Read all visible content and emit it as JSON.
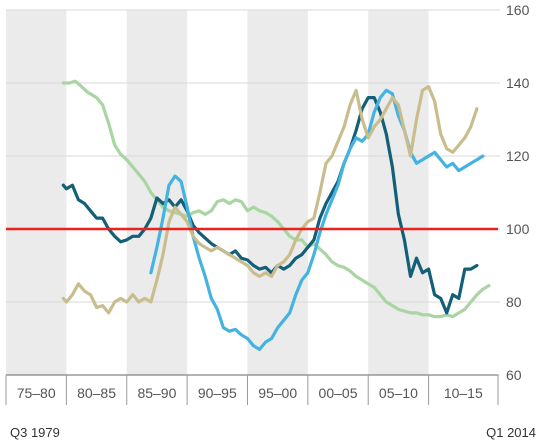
{
  "chart_data": {
    "type": "line",
    "y_range": [
      60,
      160
    ],
    "y_ticks": [
      60,
      80,
      100,
      120,
      140,
      160
    ],
    "x_range": [
      1975.0,
      2015.75
    ],
    "periods": [
      {
        "label": "75–80",
        "start": 1975,
        "end": 1980,
        "shaded": true
      },
      {
        "label": "80–85",
        "start": 1980,
        "end": 1985,
        "shaded": false
      },
      {
        "label": "85–90",
        "start": 1985,
        "end": 1990,
        "shaded": true
      },
      {
        "label": "90–95",
        "start": 1990,
        "end": 1995,
        "shaded": false
      },
      {
        "label": "95–00",
        "start": 1995,
        "end": 2000,
        "shaded": true
      },
      {
        "label": "00–05",
        "start": 2000,
        "end": 2005,
        "shaded": false
      },
      {
        "label": "05–10",
        "start": 2005,
        "end": 2010,
        "shaded": true
      },
      {
        "label": "10–15",
        "start": 2010,
        "end": 2015.75,
        "shaded": false
      }
    ],
    "reference_line": {
      "y": 100,
      "color": "#e8221c"
    },
    "grid": "horizontal",
    "series": [
      {
        "color": "#a8d5a2",
        "points": [
          [
            1979.75,
            140
          ],
          [
            1980.25,
            140
          ],
          [
            1980.75,
            140.5
          ],
          [
            1981.25,
            139
          ],
          [
            1981.75,
            137.5
          ],
          [
            1982.5,
            136
          ],
          [
            1983,
            134
          ],
          [
            1983.5,
            129
          ],
          [
            1984,
            123
          ],
          [
            1984.5,
            120.5
          ],
          [
            1985,
            119
          ],
          [
            1985.5,
            117
          ],
          [
            1986,
            115
          ],
          [
            1986.5,
            113
          ],
          [
            1987,
            110
          ],
          [
            1987.5,
            108
          ],
          [
            1988,
            106
          ],
          [
            1988.5,
            105
          ],
          [
            1989,
            104.5
          ],
          [
            1989.5,
            104
          ],
          [
            1990,
            103.5
          ],
          [
            1990.5,
            104.5
          ],
          [
            1991,
            105
          ],
          [
            1991.5,
            104
          ],
          [
            1992,
            105
          ],
          [
            1992.5,
            107.5
          ],
          [
            1993,
            108
          ],
          [
            1993.5,
            107
          ],
          [
            1994,
            108
          ],
          [
            1994.5,
            107.5
          ],
          [
            1995,
            105
          ],
          [
            1995.5,
            106
          ],
          [
            1996,
            105
          ],
          [
            1996.5,
            104.5
          ],
          [
            1997,
            103.5
          ],
          [
            1997.5,
            102
          ],
          [
            1998,
            100
          ],
          [
            1998.5,
            98
          ],
          [
            1999,
            97
          ],
          [
            1999.5,
            97
          ],
          [
            2000,
            95
          ],
          [
            2000.5,
            96
          ],
          [
            2001,
            94.5
          ],
          [
            2001.5,
            93
          ],
          [
            2002,
            91
          ],
          [
            2002.5,
            90
          ],
          [
            2003,
            89.5
          ],
          [
            2003.5,
            88.5
          ],
          [
            2004,
            87
          ],
          [
            2004.5,
            86
          ],
          [
            2005,
            85
          ],
          [
            2005.5,
            84
          ],
          [
            2006,
            82
          ],
          [
            2006.5,
            80
          ],
          [
            2007,
            79
          ],
          [
            2007.5,
            78
          ],
          [
            2008,
            77.5
          ],
          [
            2008.5,
            77
          ],
          [
            2009,
            77
          ],
          [
            2009.5,
            76.5
          ],
          [
            2010,
            76.5
          ],
          [
            2010.5,
            76
          ],
          [
            2011,
            76
          ],
          [
            2011.5,
            76.5
          ],
          [
            2012,
            76
          ],
          [
            2012.5,
            77
          ],
          [
            2013,
            78
          ],
          [
            2013.5,
            80
          ],
          [
            2014,
            82
          ],
          [
            2014.5,
            83.5
          ],
          [
            2015,
            84.5
          ]
        ]
      },
      {
        "color": "#135f78",
        "points": [
          [
            1979.75,
            112
          ],
          [
            1980,
            111
          ],
          [
            1980.5,
            112
          ],
          [
            1981,
            108
          ],
          [
            1981.5,
            107
          ],
          [
            1982,
            105
          ],
          [
            1982.5,
            103
          ],
          [
            1983,
            103
          ],
          [
            1983.5,
            100
          ],
          [
            1984,
            98
          ],
          [
            1984.5,
            96.5
          ],
          [
            1985,
            97
          ],
          [
            1985.5,
            98
          ],
          [
            1986,
            98
          ],
          [
            1986.5,
            100
          ],
          [
            1987,
            103
          ],
          [
            1987.5,
            108.5
          ],
          [
            1988,
            107
          ],
          [
            1988.5,
            108
          ],
          [
            1989,
            106
          ],
          [
            1989.5,
            108
          ],
          [
            1990,
            105
          ],
          [
            1990.5,
            101
          ],
          [
            1991,
            99
          ],
          [
            1991.5,
            97.5
          ],
          [
            1992,
            96
          ],
          [
            1992.5,
            95
          ],
          [
            1993,
            94
          ],
          [
            1993.5,
            93
          ],
          [
            1994,
            94
          ],
          [
            1994.5,
            92
          ],
          [
            1995,
            91.5
          ],
          [
            1995.5,
            90
          ],
          [
            1996,
            89
          ],
          [
            1996.5,
            89.5
          ],
          [
            1997,
            88
          ],
          [
            1997.5,
            90
          ],
          [
            1998,
            89
          ],
          [
            1998.5,
            90
          ],
          [
            1999,
            92
          ],
          [
            1999.5,
            93
          ],
          [
            2000,
            95
          ],
          [
            2000.5,
            97
          ],
          [
            2001,
            103
          ],
          [
            2001.5,
            107
          ],
          [
            2002,
            110
          ],
          [
            2002.5,
            113
          ],
          [
            2003,
            118
          ],
          [
            2003.5,
            122
          ],
          [
            2004,
            127
          ],
          [
            2004.5,
            133
          ],
          [
            2005,
            136
          ],
          [
            2005.5,
            136
          ],
          [
            2006,
            132
          ],
          [
            2006.5,
            126
          ],
          [
            2007,
            117
          ],
          [
            2007.5,
            104
          ],
          [
            2008,
            97
          ],
          [
            2008.5,
            87
          ],
          [
            2009,
            92
          ],
          [
            2009.5,
            88
          ],
          [
            2010,
            89
          ],
          [
            2010.5,
            82
          ],
          [
            2011,
            81
          ],
          [
            2011.5,
            77
          ],
          [
            2012,
            82
          ],
          [
            2012.5,
            81
          ],
          [
            2013,
            89
          ],
          [
            2013.5,
            89
          ],
          [
            2014,
            90
          ]
        ]
      },
      {
        "color": "#44b3e1",
        "points": [
          [
            1987,
            88
          ],
          [
            1987.5,
            95
          ],
          [
            1988,
            103
          ],
          [
            1988.5,
            112
          ],
          [
            1989,
            114.5
          ],
          [
            1989.5,
            113
          ],
          [
            1990,
            106
          ],
          [
            1990.5,
            98
          ],
          [
            1991,
            92
          ],
          [
            1991.5,
            87
          ],
          [
            1992,
            81
          ],
          [
            1992.5,
            78
          ],
          [
            1993,
            73
          ],
          [
            1993.5,
            72
          ],
          [
            1994,
            72.5
          ],
          [
            1994.5,
            71
          ],
          [
            1995,
            70
          ],
          [
            1995.5,
            68
          ],
          [
            1996,
            67
          ],
          [
            1996.5,
            69
          ],
          [
            1997,
            70
          ],
          [
            1997.5,
            73
          ],
          [
            1998,
            75
          ],
          [
            1998.5,
            77
          ],
          [
            1999,
            82
          ],
          [
            1999.5,
            86
          ],
          [
            2000,
            88
          ],
          [
            2000.5,
            93
          ],
          [
            2001,
            99
          ],
          [
            2001.5,
            104
          ],
          [
            2002,
            108
          ],
          [
            2002.5,
            112
          ],
          [
            2003,
            118
          ],
          [
            2003.5,
            122
          ],
          [
            2004,
            125
          ],
          [
            2004.5,
            124
          ],
          [
            2005,
            126
          ],
          [
            2005.5,
            132
          ],
          [
            2006,
            136
          ],
          [
            2006.5,
            138
          ],
          [
            2007,
            137
          ],
          [
            2007.5,
            131
          ],
          [
            2008,
            127
          ],
          [
            2008.5,
            121
          ],
          [
            2009,
            118
          ],
          [
            2009.5,
            119
          ],
          [
            2010,
            120
          ],
          [
            2010.5,
            121
          ],
          [
            2011,
            119
          ],
          [
            2011.5,
            117
          ],
          [
            2012,
            118
          ],
          [
            2012.5,
            116
          ],
          [
            2013,
            117
          ],
          [
            2013.5,
            118
          ],
          [
            2014,
            119
          ],
          [
            2014.5,
            120
          ]
        ]
      },
      {
        "color": "#c9bd8e",
        "points": [
          [
            1979.75,
            81
          ],
          [
            1980,
            80
          ],
          [
            1980.5,
            82
          ],
          [
            1981,
            85
          ],
          [
            1981.5,
            83
          ],
          [
            1982,
            82
          ],
          [
            1982.5,
            78.5
          ],
          [
            1983,
            79
          ],
          [
            1983.5,
            77
          ],
          [
            1984,
            80
          ],
          [
            1984.5,
            81
          ],
          [
            1985,
            80
          ],
          [
            1985.5,
            82
          ],
          [
            1986,
            80
          ],
          [
            1986.5,
            81
          ],
          [
            1987,
            80
          ],
          [
            1987.5,
            86
          ],
          [
            1988,
            93
          ],
          [
            1988.5,
            102
          ],
          [
            1989,
            106
          ],
          [
            1989.5,
            104
          ],
          [
            1990,
            102
          ],
          [
            1990.5,
            98
          ],
          [
            1991,
            96
          ],
          [
            1991.5,
            95
          ],
          [
            1992,
            94
          ],
          [
            1992.5,
            95
          ],
          [
            1993,
            94
          ],
          [
            1993.5,
            93
          ],
          [
            1994,
            92
          ],
          [
            1994.5,
            91
          ],
          [
            1995,
            90
          ],
          [
            1995.5,
            88
          ],
          [
            1996,
            87
          ],
          [
            1996.5,
            88
          ],
          [
            1997,
            87
          ],
          [
            1997.5,
            90
          ],
          [
            1998,
            91
          ],
          [
            1998.5,
            93
          ],
          [
            1999,
            97
          ],
          [
            1999.5,
            100
          ],
          [
            2000,
            102
          ],
          [
            2000.5,
            103
          ],
          [
            2001,
            110
          ],
          [
            2001.5,
            118
          ],
          [
            2002,
            120
          ],
          [
            2002.5,
            124
          ],
          [
            2003,
            128
          ],
          [
            2003.5,
            134
          ],
          [
            2004,
            138
          ],
          [
            2004.5,
            130
          ],
          [
            2005,
            125
          ],
          [
            2005.5,
            128
          ],
          [
            2006,
            130
          ],
          [
            2006.5,
            133
          ],
          [
            2007,
            136
          ],
          [
            2007.5,
            134
          ],
          [
            2008,
            127
          ],
          [
            2008.5,
            120
          ],
          [
            2009,
            130
          ],
          [
            2009.5,
            138
          ],
          [
            2010,
            139
          ],
          [
            2010.5,
            135
          ],
          [
            2011,
            126
          ],
          [
            2011.5,
            122
          ],
          [
            2012,
            121
          ],
          [
            2012.5,
            123
          ],
          [
            2013,
            125
          ],
          [
            2013.5,
            128
          ],
          [
            2014,
            133
          ]
        ]
      }
    ]
  },
  "footer": {
    "start_label": "Q3 1979",
    "end_label": "Q1 2014"
  }
}
